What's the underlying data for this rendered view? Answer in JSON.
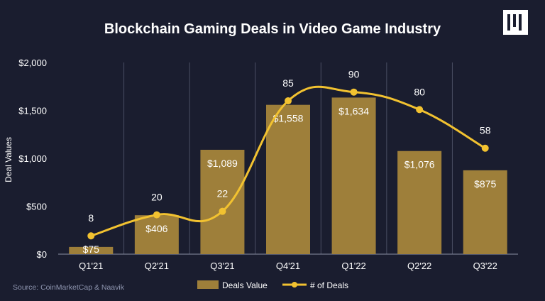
{
  "header": {
    "title": "Blockchain Gaming Deals in Video Game Industry",
    "logo": "naavik-logo-icon"
  },
  "source": "Source:  CoinMarketCap & Naavik",
  "colors": {
    "background": "#1a1d2f",
    "bar": "#9e7f3a",
    "line": "#f2c230",
    "grid": "#4a4e63",
    "text": "#ffffff"
  },
  "chart_data": {
    "type": "bar",
    "title": "Blockchain Gaming Deals in Video Game Industry",
    "xlabel": "",
    "ylabel": "Deal Values",
    "ylim": [
      0,
      2000
    ],
    "yticks": [
      0,
      500,
      1000,
      1500,
      2000
    ],
    "ytick_labels": [
      "$0",
      "$500",
      "$1,000",
      "$1,500",
      "$2,000"
    ],
    "categories": [
      "Q1'21",
      "Q2'21",
      "Q3'21",
      "Q4'21",
      "Q1'22",
      "Q2'22",
      "Q3'22"
    ],
    "series": [
      {
        "name": "Deals Value",
        "type": "bar",
        "values": [
          75,
          406,
          1089,
          1558,
          1634,
          1076,
          875
        ],
        "labels": [
          "$75",
          "$406",
          "$1,089",
          "$1,558",
          "$1,634",
          "$1,076",
          "$875"
        ]
      },
      {
        "name": "# of Deals",
        "type": "line",
        "values": [
          8,
          20,
          22,
          85,
          90,
          80,
          58
        ],
        "labels": [
          "8",
          "20",
          "22",
          "85",
          "90",
          "80",
          "58"
        ]
      }
    ],
    "legend": [
      "Deals Value",
      "# of Deals"
    ],
    "legend_position": "bottom"
  }
}
